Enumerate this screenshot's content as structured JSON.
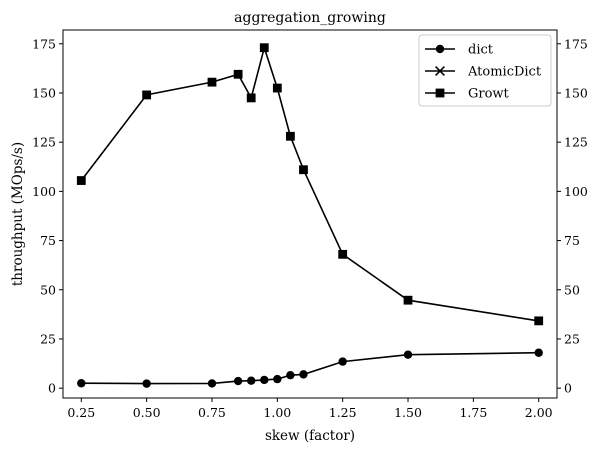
{
  "chart_data": {
    "type": "line",
    "title": "aggregation_growing",
    "xlabel": "skew (factor)",
    "ylabel": "throughput (MOps/s)",
    "xlim": [
      0.18,
      2.07
    ],
    "ylim": [
      -5,
      182
    ],
    "xticks": [
      "0.25",
      "0.50",
      "0.75",
      "1.00",
      "1.25",
      "1.50",
      "1.75",
      "2.00"
    ],
    "yticks": [
      "0",
      "25",
      "50",
      "75",
      "100",
      "125",
      "150",
      "175"
    ],
    "secondary_y_axis": true,
    "legend_position": "top-right",
    "grid": false,
    "series": [
      {
        "name": "dict",
        "marker": "circle",
        "color": "#000000",
        "x": [
          0.25,
          0.5,
          0.75,
          0.85,
          0.9,
          0.95,
          1.0,
          1.05,
          1.1,
          1.25,
          1.5,
          2.0
        ],
        "y": [
          2.5,
          2.3,
          2.4,
          3.6,
          3.8,
          4.2,
          4.6,
          6.6,
          7.0,
          13.5,
          17.0,
          18.0
        ]
      },
      {
        "name": "AtomicDict",
        "marker": "x",
        "color": "#000000",
        "x": [],
        "y": []
      },
      {
        "name": "Growt",
        "marker": "square",
        "color": "#000000",
        "x": [
          0.25,
          0.5,
          0.75,
          0.85,
          0.9,
          0.95,
          1.0,
          1.05,
          1.1,
          1.25,
          1.5,
          2.0
        ],
        "y": [
          105.5,
          149,
          155.5,
          159.5,
          147.5,
          173,
          152.5,
          128,
          111,
          68,
          44.7,
          34.2
        ]
      }
    ]
  }
}
